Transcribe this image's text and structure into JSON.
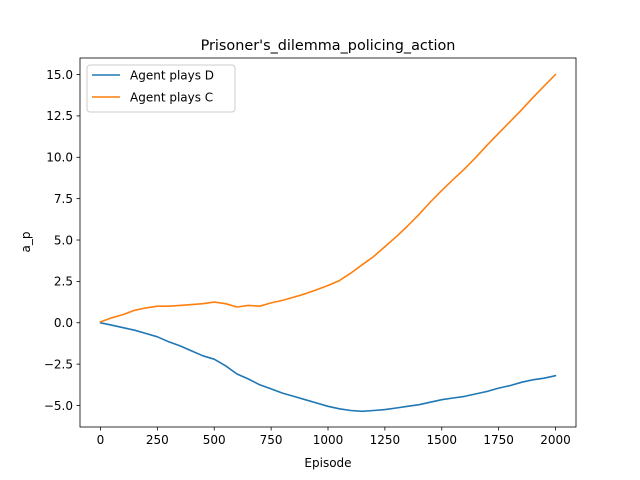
{
  "chart_data": {
    "type": "line",
    "title": "Prisoner's_dilemma_policing_action",
    "xlabel": "Episode",
    "ylabel": "a_p",
    "xlim": [
      -90,
      2090
    ],
    "ylim": [
      -6.3,
      16.0
    ],
    "xticks": [
      0,
      250,
      500,
      750,
      1000,
      1250,
      1500,
      1750,
      2000
    ],
    "xtick_labels": [
      "0",
      "250",
      "500",
      "750",
      "1000",
      "1250",
      "1500",
      "1750",
      "2000"
    ],
    "yticks": [
      -5.0,
      -2.5,
      0.0,
      2.5,
      5.0,
      7.5,
      10.0,
      12.5,
      15.0
    ],
    "ytick_labels": [
      "−5.0",
      "−2.5",
      "0.0",
      "2.5",
      "5.0",
      "7.5",
      "10.0",
      "12.5",
      "15.0"
    ],
    "grid": false,
    "legend_position": "upper-left",
    "series": [
      {
        "name": "Agent plays D",
        "color": "#1f77b4",
        "x": [
          0,
          50,
          100,
          150,
          200,
          250,
          300,
          350,
          400,
          450,
          500,
          550,
          600,
          650,
          700,
          750,
          800,
          850,
          900,
          950,
          1000,
          1050,
          1100,
          1150,
          1200,
          1250,
          1300,
          1350,
          1400,
          1450,
          1500,
          1550,
          1600,
          1650,
          1700,
          1750,
          1800,
          1850,
          1900,
          1950,
          2000
        ],
        "values": [
          0.0,
          -0.15,
          -0.3,
          -0.45,
          -0.65,
          -0.85,
          -1.15,
          -1.4,
          -1.7,
          -2.0,
          -2.2,
          -2.6,
          -3.1,
          -3.4,
          -3.75,
          -4.0,
          -4.25,
          -4.45,
          -4.65,
          -4.85,
          -5.05,
          -5.2,
          -5.3,
          -5.35,
          -5.3,
          -5.25,
          -5.15,
          -5.05,
          -4.95,
          -4.8,
          -4.65,
          -4.55,
          -4.45,
          -4.3,
          -4.15,
          -3.95,
          -3.8,
          -3.6,
          -3.45,
          -3.35,
          -3.2
        ]
      },
      {
        "name": "Agent plays C",
        "color": "#ff7f0e",
        "x": [
          0,
          50,
          100,
          150,
          200,
          250,
          300,
          350,
          400,
          450,
          500,
          550,
          600,
          650,
          700,
          750,
          800,
          850,
          900,
          950,
          1000,
          1050,
          1100,
          1150,
          1200,
          1250,
          1300,
          1350,
          1400,
          1450,
          1500,
          1550,
          1600,
          1650,
          1700,
          1750,
          1800,
          1850,
          1900,
          1950,
          2000
        ],
        "values": [
          0.05,
          0.3,
          0.5,
          0.75,
          0.9,
          1.0,
          1.0,
          1.05,
          1.1,
          1.15,
          1.25,
          1.15,
          0.95,
          1.05,
          1.0,
          1.2,
          1.35,
          1.55,
          1.75,
          2.0,
          2.25,
          2.55,
          3.0,
          3.5,
          4.0,
          4.6,
          5.2,
          5.85,
          6.55,
          7.3,
          8.0,
          8.65,
          9.3,
          10.0,
          10.75,
          11.45,
          12.15,
          12.85,
          13.6,
          14.3,
          15.0
        ]
      }
    ]
  }
}
